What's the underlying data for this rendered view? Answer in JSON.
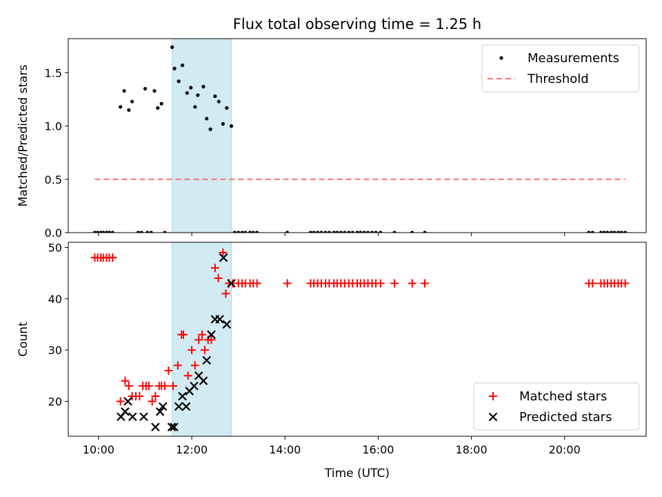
{
  "chart_data": {
    "title": "Flux total observing time = 1.25 h",
    "xlabel": "Time (UTC)",
    "x_unit": "hours UTC",
    "xlim": [
      9.35,
      21.75
    ],
    "xticks": [
      10,
      12,
      14,
      16,
      18,
      20
    ],
    "xtick_labels": [
      "10:00",
      "12:00",
      "14:00",
      "16:00",
      "18:00",
      "20:00"
    ],
    "shaded_span": {
      "from": 11.58,
      "to": 12.85,
      "color": "#add8e6"
    },
    "colors": {
      "measurements": "#000000",
      "threshold": "#ff7070",
      "matched": "#ff0000",
      "predicted": "#000000",
      "span": "#add8e6"
    },
    "panels": [
      {
        "type": "scatter",
        "ylabel": "Matched/Predicted stars",
        "ylim": [
          0,
          1.82
        ],
        "yticks": [
          0.0,
          0.5,
          1.0,
          1.5
        ],
        "ytick_labels": [
          "0.0",
          "0.5",
          "1.0",
          "1.5"
        ],
        "legend": {
          "placement": "top-right",
          "entries": [
            "Measurements",
            "Threshold"
          ]
        },
        "series": [
          {
            "name": "Measurements",
            "type": "scatter",
            "x": [
              9.92,
              9.98,
              10.05,
              10.1,
              10.17,
              10.23,
              10.3,
              10.47,
              10.55,
              10.65,
              10.72,
              10.85,
              10.92,
              11.0,
              11.05,
              11.13,
              11.2,
              11.27,
              11.35,
              11.42,
              11.58,
              11.63,
              11.72,
              11.8,
              11.9,
              11.98,
              12.07,
              12.13,
              12.25,
              12.32,
              12.4,
              12.5,
              12.58,
              12.67,
              12.75,
              12.85,
              12.92,
              13.0,
              13.08,
              13.15,
              13.25,
              13.32,
              13.4,
              14.05,
              14.55,
              14.62,
              14.7,
              14.78,
              14.87,
              14.95,
              15.05,
              15.12,
              15.2,
              15.28,
              15.37,
              15.45,
              15.55,
              15.62,
              15.7,
              15.78,
              15.87,
              15.95,
              16.05,
              16.35,
              16.73,
              17.0,
              20.52,
              20.6,
              20.78,
              20.85,
              20.92,
              21.0,
              21.07,
              21.15,
              21.22,
              21.3
            ],
            "y": [
              0,
              0,
              0,
              0,
              0,
              0,
              0,
              1.18,
              1.33,
              1.15,
              1.23,
              0,
              0,
              1.35,
              0,
              0,
              1.33,
              1.17,
              1.21,
              0,
              1.74,
              1.54,
              1.42,
              1.57,
              1.31,
              1.36,
              1.18,
              1.29,
              1.37,
              1.07,
              0.97,
              1.28,
              1.23,
              1.02,
              1.17,
              1.0,
              0,
              0,
              0,
              0,
              0,
              0,
              0,
              0,
              0,
              0,
              0,
              0,
              0,
              0,
              0,
              0,
              0,
              0,
              0,
              0,
              0,
              0,
              0,
              0,
              0,
              0,
              0,
              0,
              0,
              0,
              0,
              0,
              0,
              0,
              0,
              0,
              0,
              0,
              0,
              0
            ]
          },
          {
            "name": "Threshold",
            "type": "line",
            "x": [
              9.92,
              21.3
            ],
            "y": [
              0.5,
              0.5
            ]
          }
        ]
      },
      {
        "type": "scatter",
        "ylabel": "Count",
        "ylim": [
          13.2,
          51
        ],
        "yticks": [
          20,
          30,
          40,
          50
        ],
        "ytick_labels": [
          "20",
          "30",
          "40",
          "50"
        ],
        "legend": {
          "placement": "bottom-right",
          "entries": [
            "Matched stars",
            "Predicted stars"
          ]
        },
        "series": [
          {
            "name": "Matched stars",
            "type": "scatter",
            "x": [
              9.92,
              9.98,
              10.05,
              10.1,
              10.17,
              10.23,
              10.3,
              10.47,
              10.57,
              10.65,
              10.72,
              10.8,
              10.88,
              10.95,
              11.02,
              11.08,
              11.15,
              11.22,
              11.3,
              11.35,
              11.42,
              11.5,
              11.6,
              11.7,
              11.78,
              11.82,
              11.92,
              12.0,
              12.07,
              12.15,
              12.22,
              12.28,
              12.35,
              12.42,
              12.5,
              12.57,
              12.67,
              12.73,
              12.8,
              12.88,
              13.0,
              13.08,
              13.15,
              13.25,
              13.32,
              13.4,
              14.05,
              14.55,
              14.62,
              14.7,
              14.78,
              14.87,
              14.95,
              15.05,
              15.12,
              15.2,
              15.28,
              15.37,
              15.45,
              15.55,
              15.62,
              15.7,
              15.78,
              15.87,
              15.95,
              16.05,
              16.35,
              16.73,
              17.0,
              20.52,
              20.6,
              20.78,
              20.85,
              20.92,
              21.0,
              21.07,
              21.15,
              21.22,
              21.3
            ],
            "y": [
              48,
              48,
              48,
              48,
              48,
              48,
              48,
              20,
              24,
              23,
              21,
              21,
              21,
              23,
              23,
              23,
              20,
              21,
              23,
              23,
              23,
              26,
              23,
              27,
              33,
              33,
              25,
              30,
              27,
              32,
              33,
              30,
              32,
              32,
              46,
              44,
              49,
              41,
              43,
              43,
              43,
              43,
              43,
              43,
              43,
              43,
              43,
              43,
              43,
              43,
              43,
              43,
              43,
              43,
              43,
              43,
              43,
              43,
              43,
              43,
              43,
              43,
              43,
              43,
              43,
              43,
              43,
              43,
              43,
              43,
              43,
              43,
              43,
              43,
              43,
              43,
              43,
              43,
              43
            ]
          },
          {
            "name": "Predicted stars",
            "type": "scatter",
            "x": [
              10.48,
              10.57,
              10.63,
              10.73,
              10.97,
              11.22,
              11.32,
              11.38,
              11.57,
              11.62,
              11.72,
              11.8,
              11.88,
              11.95,
              12.05,
              12.15,
              12.25,
              12.32,
              12.42,
              12.5,
              12.6,
              12.68,
              12.75,
              12.85
            ],
            "y": [
              17,
              18,
              20,
              17,
              17,
              15,
              18,
              19,
              15,
              15,
              19,
              21,
              19,
              22,
              23,
              25,
              24,
              28,
              33,
              36,
              36,
              48,
              35,
              43
            ]
          }
        ]
      }
    ]
  }
}
